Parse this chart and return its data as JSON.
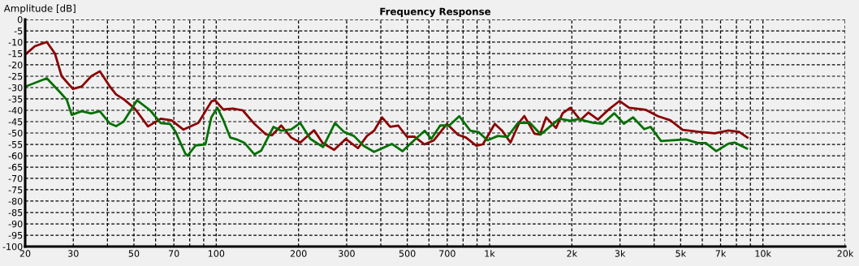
{
  "chart_data": {
    "type": "line",
    "title": "Frequency Response",
    "ylabel": "Amplitude [dB]",
    "log": "x",
    "grid": true,
    "marker": "none",
    "line_style": "solid",
    "xlim": [
      20,
      20000
    ],
    "ylim": [
      -100,
      0
    ],
    "xticks": [
      20,
      30,
      {
        "value": 40,
        "label": null
      },
      50,
      {
        "value": 60,
        "label": null
      },
      70,
      {
        "value": 80,
        "label": null
      },
      {
        "value": 90,
        "label": null
      },
      100,
      200,
      300,
      {
        "value": 400,
        "label": null
      },
      500,
      {
        "value": 600,
        "label": null
      },
      700,
      {
        "value": 800,
        "label": null
      },
      {
        "value": 900,
        "label": null
      },
      {
        "value": 1000,
        "label": "1k"
      },
      {
        "value": 2000,
        "label": "2k"
      },
      {
        "value": 3000,
        "label": "3k"
      },
      {
        "value": 4000,
        "label": null
      },
      {
        "value": 5000,
        "label": "5k"
      },
      {
        "value": 6000,
        "label": null
      },
      {
        "value": 7000,
        "label": "7k"
      },
      {
        "value": 8000,
        "label": null
      },
      {
        "value": 9000,
        "label": null
      },
      {
        "value": 10000,
        "label": "10k"
      },
      {
        "value": 20000,
        "label": "20k"
      }
    ],
    "yticks": [
      0,
      -5,
      -10,
      -15,
      -20,
      -25,
      -30,
      -35,
      -40,
      -45,
      -50,
      -55,
      -60,
      -65,
      -70,
      -75,
      -80,
      -85,
      -90,
      -95,
      -100
    ],
    "series": [
      {
        "color": "#8b0000",
        "x": [
          20,
          21.7,
          24,
          25.7,
          27.2,
          29.9,
          32.2,
          34.9,
          37.5,
          40.7,
          43,
          46.1,
          50.4,
          56.3,
          62.7,
          68.6,
          75.9,
          86,
          96.2,
          99,
          106,
          115,
          125,
          137,
          152,
          160,
          173,
          188,
          203,
          228,
          245,
          270,
          298,
          330,
          356,
          378,
          404,
          433,
          463,
          499,
          530,
          578,
          626,
          698,
          767,
          820,
          894,
          945,
          1045,
          1112,
          1193,
          1290,
          1340,
          1460,
          1528,
          1610,
          1750,
          1850,
          1975,
          2150,
          2300,
          2490,
          2730,
          2990,
          3240,
          3730,
          4130,
          4590,
          5090,
          5780,
          6660,
          7480,
          8190,
          8780
        ],
        "values": [
          -15.5,
          -11.8,
          -9.9,
          -15,
          -25,
          -30.6,
          -29.5,
          -25,
          -22.8,
          -29.3,
          -33,
          -35.3,
          -39.3,
          -47.1,
          -43.7,
          -44.4,
          -48.5,
          -45.5,
          -36,
          -35.6,
          -39.6,
          -39.2,
          -40,
          -45.6,
          -50.6,
          -51,
          -46.7,
          -52,
          -54.2,
          -48.8,
          -54.4,
          -57.4,
          -52.6,
          -56.7,
          -51.3,
          -49,
          -43.1,
          -47.3,
          -46.7,
          -51.7,
          -51.6,
          -55,
          -53.2,
          -46,
          -50.8,
          -52,
          -55.6,
          -55,
          -46,
          -49,
          -54.2,
          -45,
          -42.5,
          -50.3,
          -50.7,
          -43.1,
          -47.8,
          -41.3,
          -38.9,
          -44.3,
          -41,
          -44.1,
          -39.6,
          -35.9,
          -38.9,
          -39.8,
          -42.6,
          -44.4,
          -48.6,
          -49.4,
          -50.1,
          -48.9,
          -49.5,
          -52
        ]
      },
      {
        "color": "#007000",
        "x": [
          20,
          24,
          27,
          28.4,
          29.6,
          32.2,
          34.9,
          37.5,
          40.7,
          43,
          45.8,
          51.3,
          57.3,
          62.7,
          67.8,
          71,
          77,
          78.6,
          84,
          91.3,
          96,
          101,
          105.6,
          112.5,
          120,
          127,
          138,
          146,
          162,
          173,
          188,
          203,
          221,
          246,
          272,
          294,
          319,
          346,
          378,
          439,
          480,
          517,
          579,
          612,
          660,
          712,
          775,
          850,
          911,
          983,
          1072,
          1163,
          1270,
          1407,
          1540,
          1800,
          1975,
          2110,
          2390,
          2590,
          2860,
          3100,
          3350,
          3680,
          3880,
          4240,
          4710,
          5220,
          5780,
          6180,
          6750,
          7480,
          7870,
          8740
        ],
        "values": [
          -29.6,
          -25.9,
          -32.4,
          -35.4,
          -42,
          -40.4,
          -41.4,
          -40.4,
          -45.7,
          -47,
          -45,
          -35.6,
          -40,
          -45.7,
          -46,
          -49.5,
          -59,
          -60,
          -55.5,
          -55,
          -43,
          -38.9,
          -43.7,
          -52,
          -53,
          -54.4,
          -59.4,
          -57.8,
          -47.3,
          -49,
          -48.4,
          -45.6,
          -52.6,
          -56.2,
          -45.6,
          -49.6,
          -51.3,
          -55.6,
          -58.3,
          -54.8,
          -58,
          -54.4,
          -49,
          -52.6,
          -46.7,
          -46.7,
          -42.6,
          -49,
          -49.6,
          -53.2,
          -51.3,
          -51.7,
          -45.6,
          -45.6,
          -50.6,
          -43.7,
          -44.6,
          -43.9,
          -45.5,
          -45.9,
          -41.3,
          -45.9,
          -43.1,
          -48.3,
          -47.3,
          -53.5,
          -53.2,
          -52.8,
          -54.4,
          -54.4,
          -58,
          -54.7,
          -54.2,
          -56.8
        ]
      }
    ]
  }
}
